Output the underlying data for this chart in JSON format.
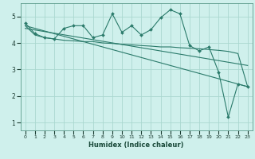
{
  "xlabel": "Humidex (Indice chaleur)",
  "xlim": [
    -0.5,
    23.5
  ],
  "ylim": [
    0.7,
    5.5
  ],
  "yticks": [
    1,
    2,
    3,
    4,
    5
  ],
  "xticks": [
    0,
    1,
    2,
    3,
    4,
    5,
    6,
    7,
    8,
    9,
    10,
    11,
    12,
    13,
    14,
    15,
    16,
    17,
    18,
    19,
    20,
    21,
    22,
    23
  ],
  "bg_color": "#cff0ec",
  "grid_color": "#aad8d0",
  "line_color": "#2a7a6a",
  "series1_x": [
    0,
    1,
    2,
    3,
    4,
    5,
    6,
    7,
    8,
    9,
    10,
    11,
    12,
    13,
    14,
    15,
    16,
    17,
    18,
    19,
    20,
    21,
    22,
    23
  ],
  "series1_y": [
    4.75,
    4.35,
    4.2,
    4.15,
    4.55,
    4.65,
    4.65,
    4.2,
    4.3,
    5.1,
    4.4,
    4.65,
    4.3,
    4.5,
    4.95,
    5.25,
    5.1,
    3.9,
    3.7,
    3.85,
    2.9,
    1.2,
    2.45,
    2.35
  ],
  "series2_x": [
    0,
    1,
    2,
    3,
    4,
    5,
    6,
    7,
    8,
    9,
    10,
    11,
    12,
    13,
    14,
    15,
    16,
    17,
    18,
    19,
    20,
    21,
    22,
    23
  ],
  "series2_y": [
    4.65,
    4.3,
    4.2,
    4.15,
    4.1,
    4.08,
    4.05,
    4.05,
    4.0,
    3.98,
    3.95,
    3.93,
    3.9,
    3.88,
    3.85,
    3.85,
    3.82,
    3.8,
    3.78,
    3.75,
    3.72,
    3.68,
    3.6,
    2.35
  ],
  "trend1_x": [
    0,
    23
  ],
  "trend1_y": [
    4.65,
    2.35
  ],
  "trend2_x": [
    0,
    23
  ],
  "trend2_y": [
    4.55,
    3.15
  ]
}
